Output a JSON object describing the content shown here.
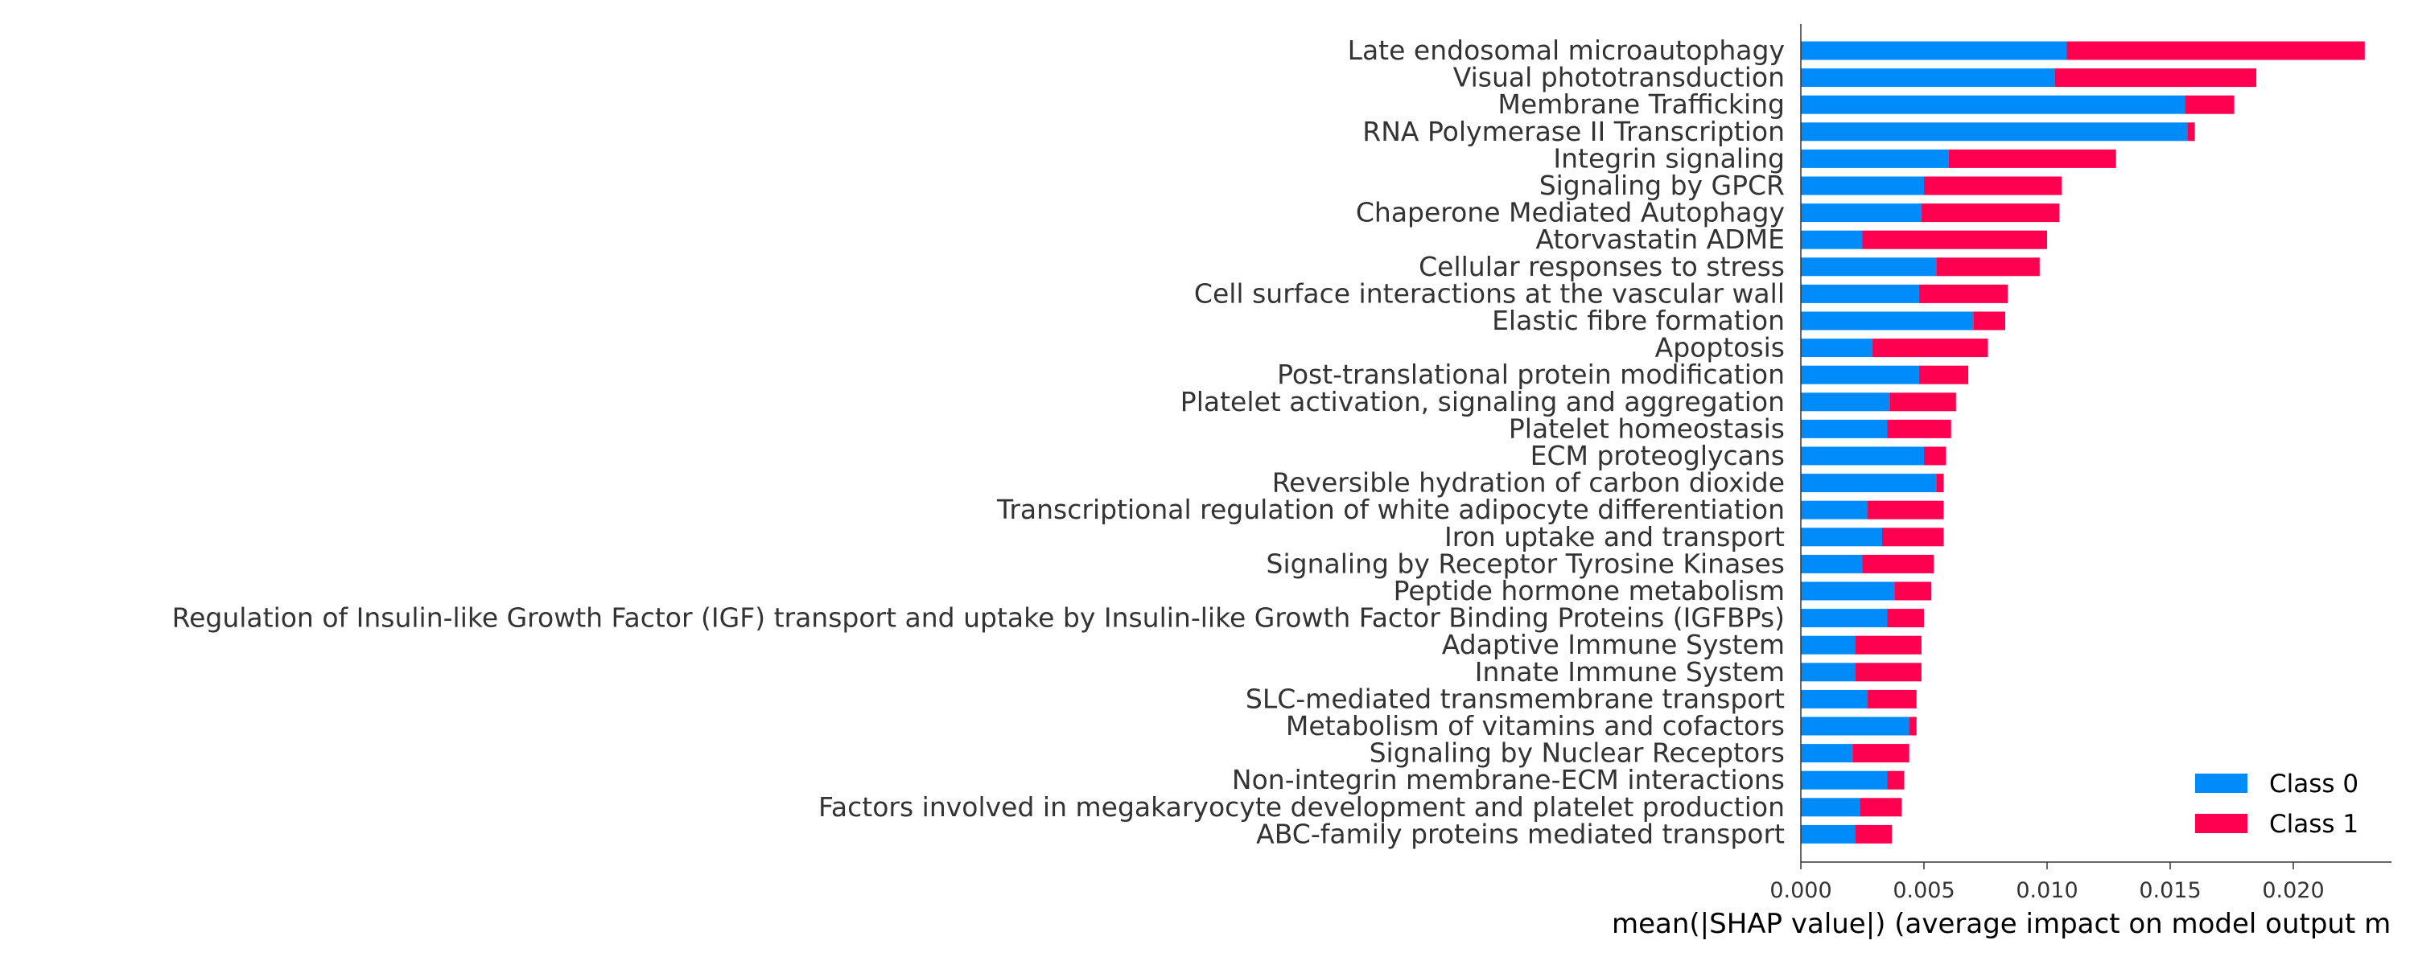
{
  "chart_data": {
    "type": "bar",
    "orientation": "horizontal",
    "stacked": true,
    "categories": [
      "Late endosomal microautophagy",
      "Visual phototransduction",
      "Membrane Trafficking",
      "RNA Polymerase II Transcription",
      "Integrin signaling",
      "Signaling by GPCR",
      "Chaperone Mediated Autophagy",
      "Atorvastatin ADME",
      "Cellular responses to stress",
      "Cell surface interactions at the vascular wall",
      "Elastic fibre formation",
      "Apoptosis",
      "Post-translational protein modification",
      "Platelet activation, signaling and aggregation",
      "Platelet homeostasis",
      "ECM proteoglycans",
      "Reversible hydration of carbon dioxide",
      "Transcriptional regulation of white adipocyte differentiation",
      "Iron uptake and transport",
      "Signaling by Receptor Tyrosine Kinases",
      "Peptide hormone metabolism",
      "Regulation of Insulin-like Growth Factor (IGF) transport and uptake by Insulin-like Growth Factor Binding Proteins (IGFBPs)",
      "Adaptive Immune System",
      "Innate Immune System",
      "SLC-mediated transmembrane transport",
      "Metabolism of vitamins and cofactors",
      "Signaling by Nuclear Receptors",
      "Non-integrin membrane-ECM interactions",
      "Factors involved in megakaryocyte development and platelet production",
      "ABC-family proteins mediated transport"
    ],
    "series": [
      {
        "name": "Class 0",
        "color": "#008bfb",
        "values": [
          0.0108,
          0.0103,
          0.0156,
          0.0157,
          0.006,
          0.005,
          0.0049,
          0.0025,
          0.0055,
          0.0048,
          0.007,
          0.0029,
          0.0048,
          0.0036,
          0.0035,
          0.005,
          0.0055,
          0.0027,
          0.0033,
          0.0025,
          0.0038,
          0.0035,
          0.0022,
          0.0022,
          0.0027,
          0.0044,
          0.0021,
          0.0035,
          0.0024,
          0.0022
        ]
      },
      {
        "name": "Class 1",
        "color": "#ff0051",
        "values": [
          0.0121,
          0.0082,
          0.002,
          0.0003,
          0.0068,
          0.0056,
          0.0056,
          0.0075,
          0.0042,
          0.0036,
          0.0013,
          0.0047,
          0.002,
          0.0027,
          0.0026,
          0.0009,
          0.0003,
          0.0031,
          0.0025,
          0.0029,
          0.0015,
          0.0015,
          0.0027,
          0.0027,
          0.002,
          0.0003,
          0.0023,
          0.0007,
          0.0017,
          0.0015
        ]
      }
    ],
    "xlabel": "mean(|SHAP value|) (average impact on model output m",
    "ylabel": "",
    "xlim": [
      0,
      0.0242
    ],
    "xticks": [
      0.0,
      0.005,
      0.01,
      0.015,
      0.02
    ],
    "xtick_labels": [
      "0.000",
      "0.005",
      "0.010",
      "0.015",
      "0.020"
    ],
    "grid": false,
    "legend": {
      "position": "bottom-right",
      "entries": [
        "Class 0",
        "Class 1"
      ]
    },
    "axis_color": "#333333",
    "text_color": "#333333"
  }
}
